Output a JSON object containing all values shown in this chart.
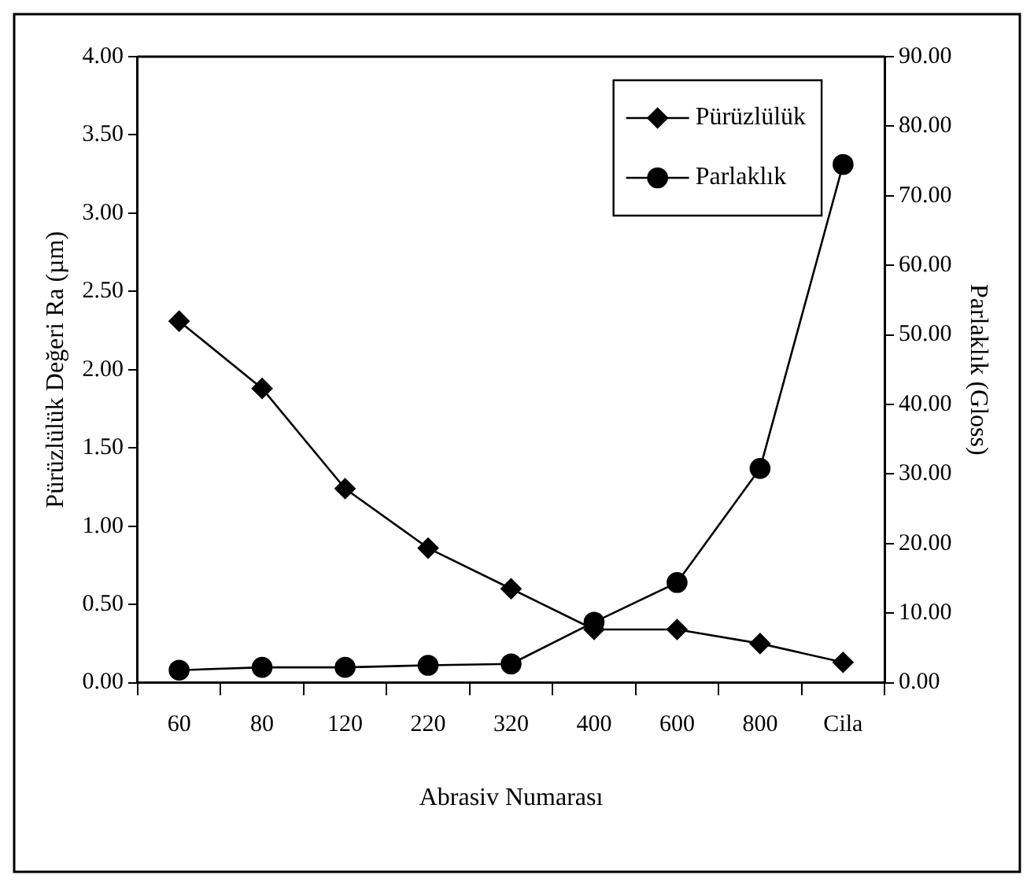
{
  "chart_data": {
    "type": "line",
    "xlabel": "Abrasiv Numarası",
    "ylabel": "Pürüzlülük Değeri Ra (µm)",
    "y2label": "Parlaklık (Gloss)",
    "categories": [
      "60",
      "80",
      "120",
      "220",
      "320",
      "400",
      "600",
      "800",
      "Cila"
    ],
    "series": [
      {
        "name": "Pürüzlülük",
        "color": "#000000",
        "marker": "diamond",
        "values": [
          2.31,
          1.88,
          1.24,
          0.86,
          0.6,
          0.34,
          0.34,
          0.25,
          0.13
        ]
      },
      {
        "name": "Parlaklık",
        "color": "#000000",
        "marker": "circle",
        "axis": "y2",
        "values": [
          1.8,
          2.2,
          2.2,
          2.5,
          2.7,
          8.7,
          14.4,
          30.8,
          74.5
        ]
      }
    ],
    "ylim": [
      0,
      4
    ],
    "yticks": [
      {
        "value": 0,
        "label": "0.00"
      },
      {
        "value": 0.5,
        "label": "0.50"
      },
      {
        "value": 1,
        "label": "1.00"
      },
      {
        "value": 1.5,
        "label": "1.50"
      },
      {
        "value": 2,
        "label": "2.00"
      },
      {
        "value": 2.5,
        "label": "2.50"
      },
      {
        "value": 3,
        "label": "3.00"
      },
      {
        "value": 3.5,
        "label": "3.50"
      },
      {
        "value": 4,
        "label": "4.00"
      }
    ],
    "y2lim": [
      0,
      90
    ],
    "y2ticks": [
      {
        "value": 0,
        "label": "0.00"
      },
      {
        "value": 10,
        "label": "10.00"
      },
      {
        "value": 20,
        "label": "20.00"
      },
      {
        "value": 30,
        "label": "30.00"
      },
      {
        "value": 40,
        "label": "40.00"
      },
      {
        "value": 50,
        "label": "50.00"
      },
      {
        "value": 60,
        "label": "60.00"
      },
      {
        "value": 70,
        "label": "70.00"
      },
      {
        "value": 80,
        "label": "80.00"
      },
      {
        "value": 90,
        "label": "90.00"
      }
    ],
    "legend": "top right",
    "grid": false,
    "line_style": "solid"
  }
}
